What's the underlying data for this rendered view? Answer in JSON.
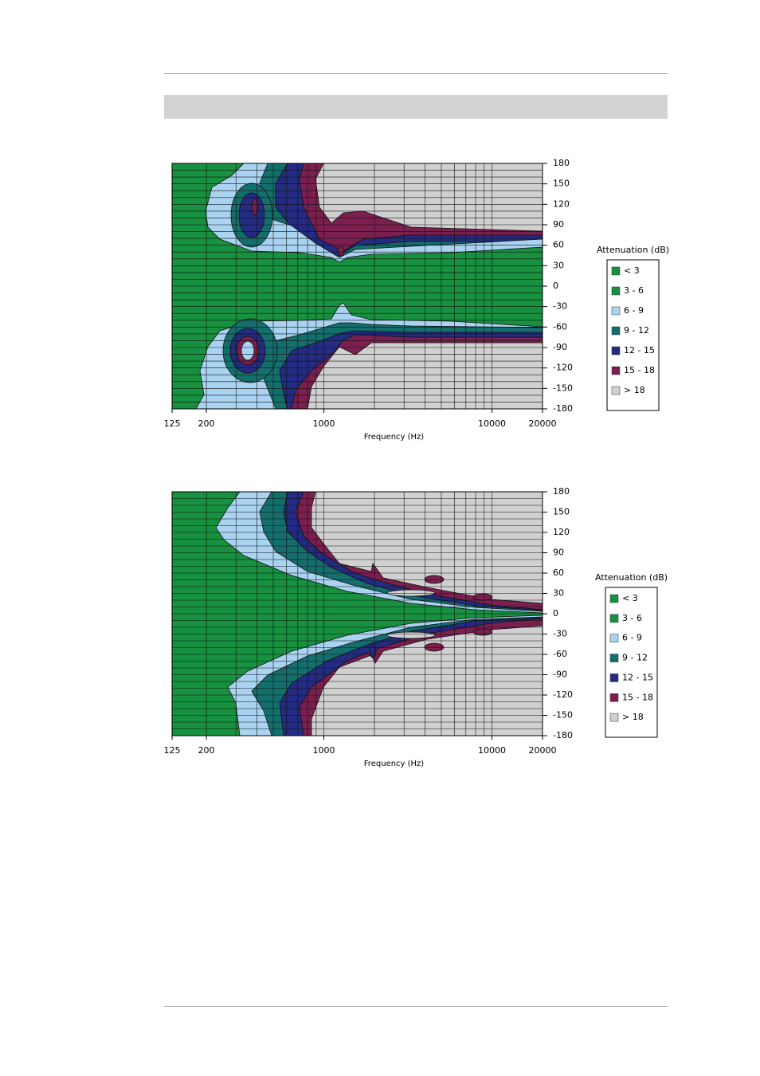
{
  "chart_data": [
    {
      "type": "contour",
      "xlabel": "Frequency (Hz)",
      "xscale": "log",
      "xlim": [
        125,
        20000
      ],
      "xticks": [
        125,
        200,
        1000,
        10000,
        20000
      ],
      "ylim": [
        -180,
        180
      ],
      "yticks": [
        180,
        150,
        120,
        90,
        60,
        30,
        0,
        -30,
        -60,
        -90,
        -120,
        -150,
        -180
      ],
      "legend_title": "Attenuation (dB)",
      "levels": [
        {
          "label": "< 3",
          "color": "#17903f"
        },
        {
          "label": "3 - 6",
          "color": "#17903f"
        },
        {
          "label": "6 - 9",
          "color": "#a9d3f1"
        },
        {
          "label": "9 - 12",
          "color": "#146f6c"
        },
        {
          "label": "12 - 15",
          "color": "#232b82"
        },
        {
          "label": "15 - 18",
          "color": "#7b1f4f"
        },
        {
          "label": "> 18",
          "color": "#d0d0d0"
        }
      ]
    },
    {
      "type": "contour",
      "xlabel": "Frequency (Hz)",
      "xscale": "log",
      "xlim": [
        125,
        20000
      ],
      "xticks": [
        125,
        200,
        1000,
        10000,
        20000
      ],
      "ylim": [
        -180,
        180
      ],
      "yticks": [
        180,
        150,
        120,
        90,
        60,
        30,
        0,
        -30,
        -60,
        -90,
        -120,
        -150,
        -180
      ],
      "legend_title": "Attenuation (dB)",
      "levels": [
        {
          "label": "< 3",
          "color": "#17903f"
        },
        {
          "label": "3 - 6",
          "color": "#17903f"
        },
        {
          "label": "6 - 9",
          "color": "#a9d3f1"
        },
        {
          "label": "9 - 12",
          "color": "#146f6c"
        },
        {
          "label": "12 - 15",
          "color": "#232b82"
        },
        {
          "label": "15 - 18",
          "color": "#7b1f4f"
        },
        {
          "label": "> 18",
          "color": "#d0d0d0"
        }
      ]
    }
  ]
}
